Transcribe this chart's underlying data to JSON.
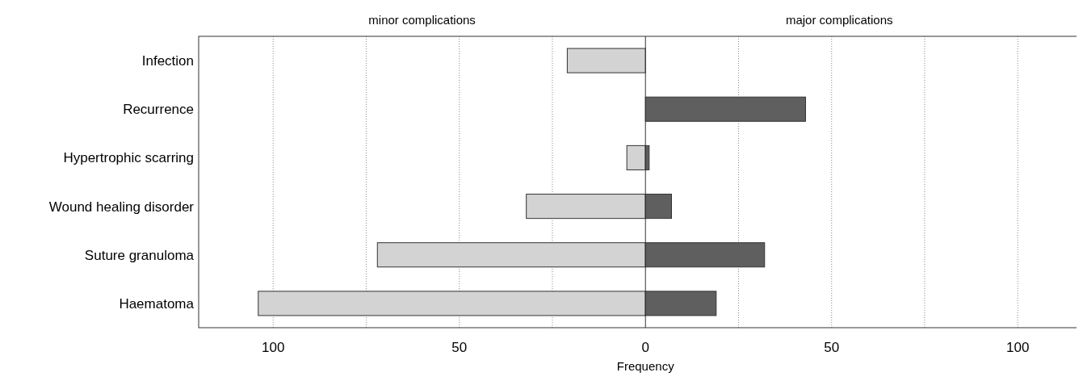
{
  "chart_data": {
    "type": "bar",
    "orientation": "horizontal",
    "stacked": true,
    "xlabel": "Frequency",
    "categories": [
      "Infection",
      "Recurrence",
      "Hypertrophic scarring",
      "Wound healing disorder",
      "Suture granuloma",
      "Haematoma"
    ],
    "series": [
      {
        "name": "minor complications",
        "color": "#d3d3d3",
        "values": [
          -21,
          null,
          -5,
          -32,
          -72,
          -104
        ]
      },
      {
        "name": "major complications",
        "color": "#5f5f5f",
        "values": [
          null,
          43,
          1,
          7,
          32,
          19
        ]
      }
    ],
    "xlim": [
      -120,
      116
    ],
    "xticks": [
      {
        "value": -100,
        "label": "100"
      },
      {
        "value": -75,
        "label": null
      },
      {
        "value": -50,
        "label": "50"
      },
      {
        "value": -25,
        "label": null
      },
      0,
      {
        "value": 25,
        "label": null
      },
      50,
      {
        "value": 75,
        "label": null
      },
      100
    ],
    "grid": "x",
    "legend": "top"
  }
}
